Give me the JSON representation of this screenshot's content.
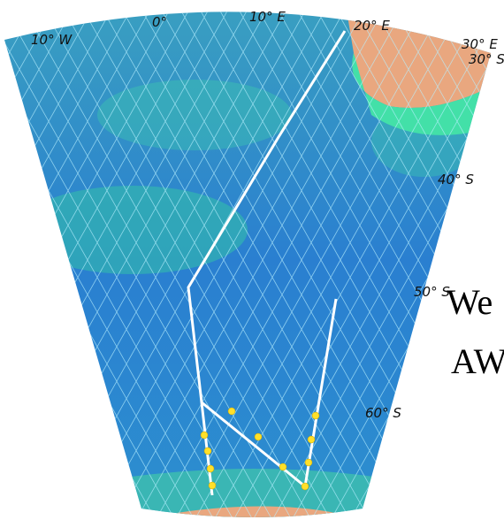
{
  "map": {
    "lon_labels": [
      "10° W",
      "0°",
      "10° E",
      "20° E",
      "30° E"
    ],
    "lat_labels": [
      "30° S",
      "40° S",
      "50° S",
      "60° S"
    ],
    "overlay_text": [
      "We",
      "AW"
    ]
  }
}
